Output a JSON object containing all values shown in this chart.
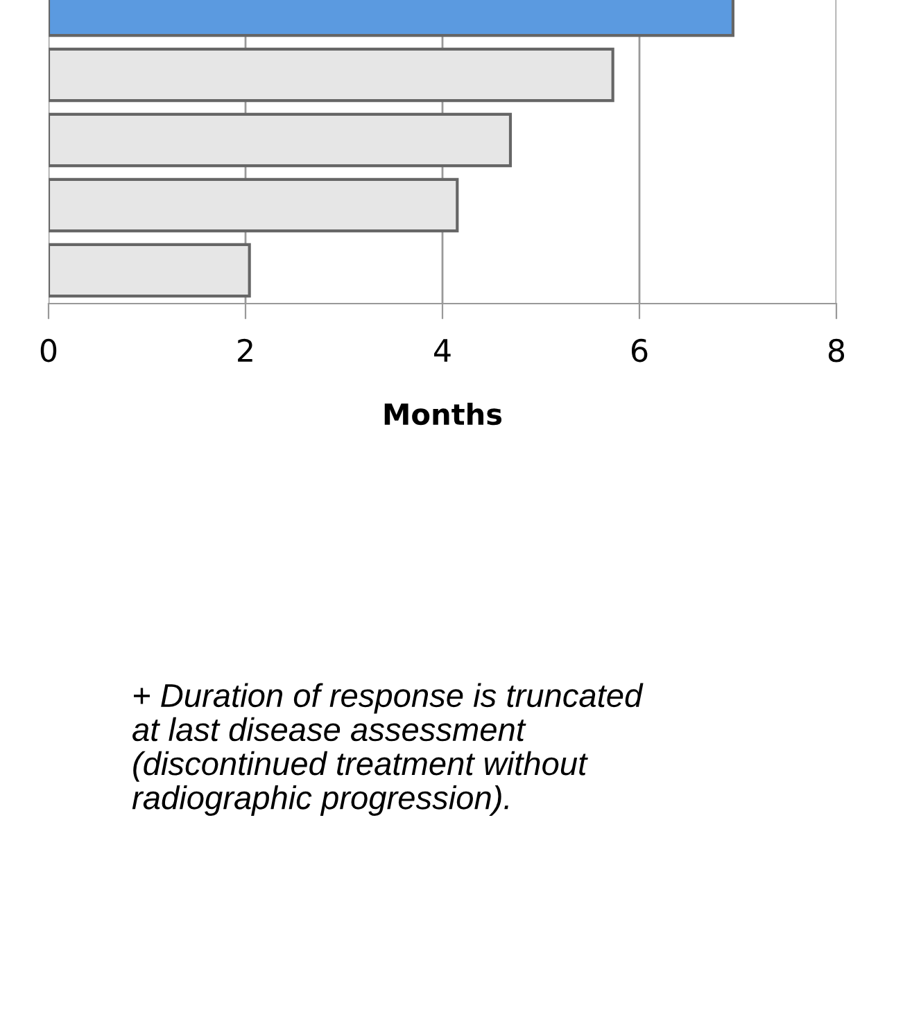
{
  "chart_data": {
    "type": "bar",
    "orientation": "horizontal",
    "categories": [
      null,
      null,
      null,
      null,
      null
    ],
    "values": [
      6.95,
      5.73,
      4.69,
      4.15,
      2.04
    ],
    "colors": [
      "#5b9ae0",
      "#e6e6e6",
      "#e6e6e6",
      "#e6e6e6",
      "#e6e6e6"
    ],
    "xlim": [
      0,
      8
    ],
    "xticks": [
      0,
      2,
      4,
      6,
      8
    ],
    "grid": "x",
    "tick_labels": "x",
    "xlabel": "Months",
    "annotations": [
      "+ Duration of response is truncated\nat last disease assessment\n(discontinued treatment without\nradiographic progression)."
    ]
  }
}
